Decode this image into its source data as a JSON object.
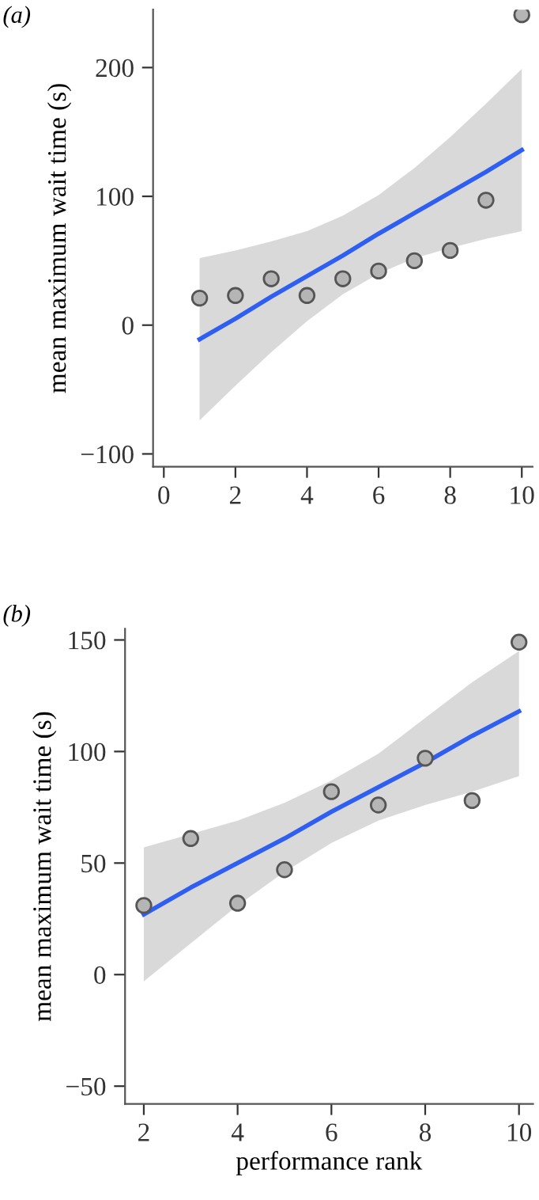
{
  "chart_data": [
    {
      "type": "scatter",
      "title": "(a)",
      "ylabel": "mean maximum wait time (s)",
      "x": [
        1,
        2,
        3,
        4,
        5,
        6,
        7,
        8,
        9,
        10
      ],
      "xlim": [
        -0.3,
        10.3
      ],
      "ylim": [
        -110,
        245
      ],
      "xticks": [
        0,
        2,
        4,
        6,
        8,
        10
      ],
      "yticks": [
        -100,
        0,
        100,
        200
      ],
      "series": [
        {
          "color": "#b5b5b5",
          "marker": "circle",
          "values": [
            21,
            23,
            36,
            23,
            36,
            42,
            50,
            58,
            97,
            241
          ]
        },
        {
          "type": "line",
          "color": "#2f5ff0",
          "x": [
            1,
            2,
            3,
            4,
            5,
            6,
            7,
            8,
            9,
            10
          ],
          "values": [
            -11,
            5,
            22,
            38,
            54,
            71,
            87,
            103,
            119,
            136
          ],
          "lower": [
            -74,
            -47,
            -21,
            3,
            24,
            40,
            52,
            60,
            67,
            73
          ],
          "upper": [
            52,
            58,
            65,
            73,
            85,
            101,
            122,
            146,
            172,
            199
          ]
        }
      ]
    },
    {
      "type": "scatter",
      "title": "(b)",
      "xlabel": "performance rank",
      "ylabel": "mean maximum wait time (s)",
      "x": [
        2,
        3,
        4,
        5,
        6,
        7,
        8,
        9,
        10
      ],
      "xlim": [
        1.6,
        10.3
      ],
      "ylim": [
        -58,
        155
      ],
      "xticks": [
        2,
        4,
        6,
        8,
        10
      ],
      "yticks": [
        -50,
        0,
        50,
        100,
        150
      ],
      "series": [
        {
          "color": "#b5b5b5",
          "marker": "circle",
          "values": [
            31,
            61,
            32,
            47,
            82,
            76,
            97,
            78,
            149
          ]
        },
        {
          "type": "line",
          "color": "#2f5ff0",
          "x": [
            2,
            3,
            4,
            5,
            6,
            7,
            8,
            9,
            10
          ],
          "values": [
            27,
            39,
            50,
            61,
            73,
            84,
            95,
            107,
            118
          ],
          "lower": [
            -3,
            14,
            31,
            46,
            59,
            69,
            76,
            82,
            89
          ],
          "upper": [
            57,
            63,
            69,
            77,
            87,
            99,
            115,
            131,
            145
          ]
        }
      ]
    }
  ]
}
